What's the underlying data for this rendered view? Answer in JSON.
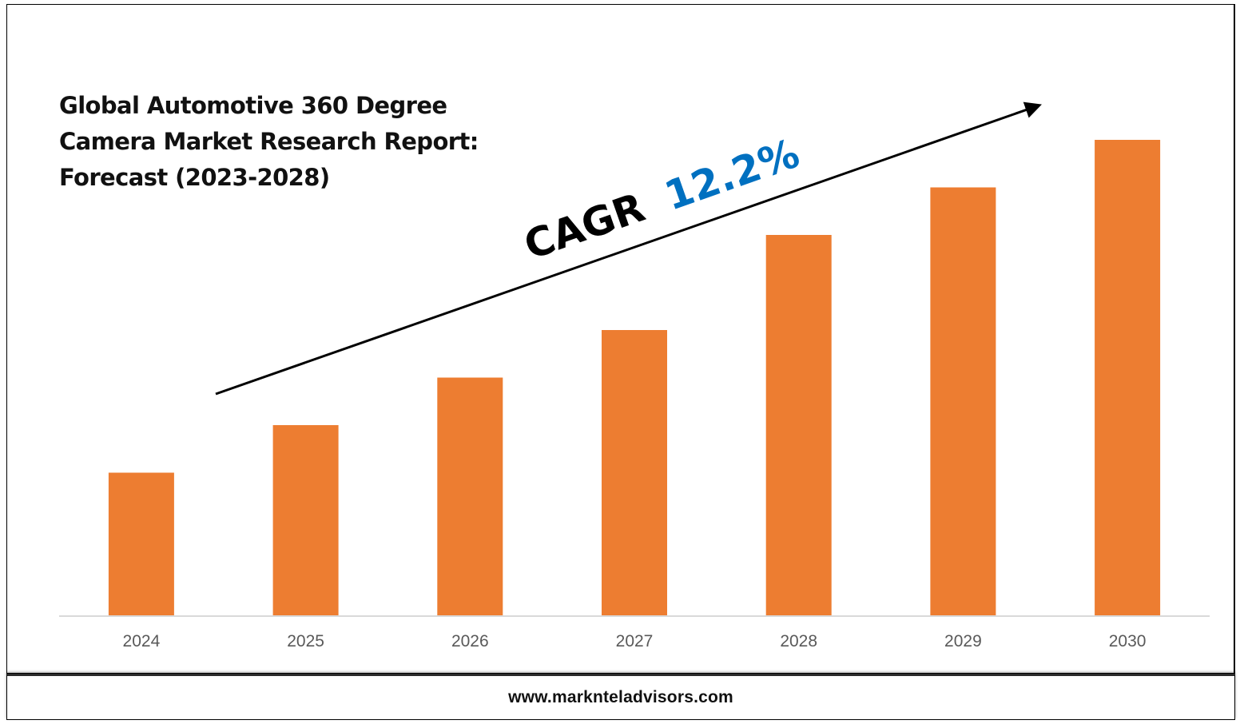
{
  "title_lines": [
    "Global Automotive 360 Degree",
    "Camera Market Research Report:",
    "Forecast (2023-2028)"
  ],
  "annotation": {
    "label": "CAGR",
    "value": "12.2%",
    "label_color": "#000000",
    "value_color": "#0070C0"
  },
  "footer": {
    "website": "www.marknteladvisors.com"
  },
  "colors": {
    "bar": "#ED7D31",
    "axis": "#D9D9D9",
    "tick_text": "#595959",
    "arrow": "#000000"
  },
  "chart_data": {
    "type": "bar",
    "categories": [
      "2024",
      "2025",
      "2026",
      "2027",
      "2028",
      "2029",
      "2030"
    ],
    "series": [
      {
        "values": [
          30,
          40,
          50,
          60,
          80,
          90,
          100
        ]
      }
    ],
    "ylim": [
      0,
      100
    ],
    "ylabel": "",
    "xlabel": "",
    "grid": false,
    "legend": "none"
  }
}
